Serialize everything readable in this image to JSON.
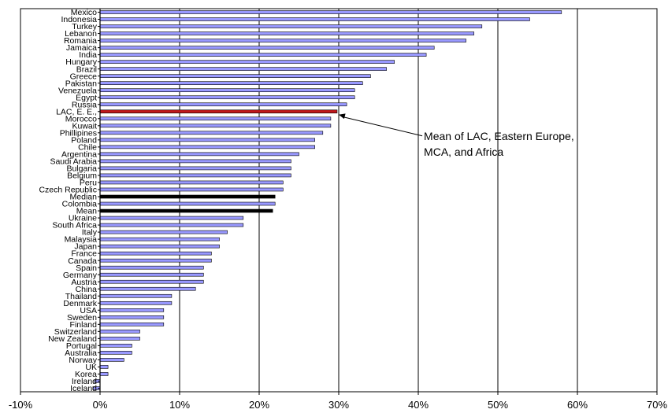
{
  "chart_data": {
    "type": "bar",
    "orientation": "horizontal",
    "categories": [
      "Mexico",
      "Indonesia",
      "Turkey",
      "Lebanon",
      "Romania",
      "Jamaica",
      "India",
      "Hungary",
      "Brazil",
      "Greece",
      "Pakistan",
      "Venezuela",
      "Egypt",
      "Russia",
      "LAC, E. E.,",
      "Morocco",
      "Kuwait",
      "Phillipines",
      "Poland",
      "Chile",
      "Argentina",
      "Saudi Arabia",
      "Bulgaria",
      "Belgium",
      "Peru",
      "Czech Republic",
      "Median",
      "Colombia",
      "Mean",
      "Ukraine",
      "South Africa",
      "Italy",
      "Malaysia",
      "Japan",
      "France",
      "Canada",
      "Spain",
      "Germany",
      "Austria",
      "China",
      "Thailand",
      "Denmark",
      "USA",
      "Sweden",
      "Finland",
      "Switzerland",
      "New Zealand",
      "Portugal",
      "Australia",
      "Norway",
      "UK",
      "Korea",
      "Ireland",
      "Iceland"
    ],
    "values": [
      58,
      54,
      48,
      47,
      46,
      42,
      41,
      37,
      36,
      34,
      33,
      32,
      32,
      31,
      29.8,
      29,
      29,
      28,
      27,
      27,
      25,
      24,
      24,
      24,
      23,
      23,
      22,
      22,
      21.7,
      18,
      18,
      16,
      15,
      15,
      14,
      14,
      13,
      13,
      13,
      12,
      9,
      9,
      8,
      8,
      8,
      5,
      5,
      4,
      4,
      3,
      1,
      1,
      -0.7,
      -0.9
    ],
    "highlight": {
      "LAC, E. E.,": "#c0181c",
      "Median": "#000000",
      "Mean": "#000000"
    },
    "bar_color": "#9999ff",
    "xlim": [
      -10,
      70
    ],
    "x_ticks": [
      -10,
      0,
      10,
      20,
      30,
      40,
      50,
      60,
      70
    ],
    "x_tick_labels": [
      "-10%",
      "0%",
      "10%",
      "20%",
      "30%",
      "40%",
      "50%",
      "60%",
      "70%"
    ],
    "grid": "vertical",
    "annotation": {
      "target": "LAC, E. E.,",
      "lines": [
        "Mean of LAC, Eastern Europe,",
        "MCA, and Africa"
      ]
    }
  }
}
